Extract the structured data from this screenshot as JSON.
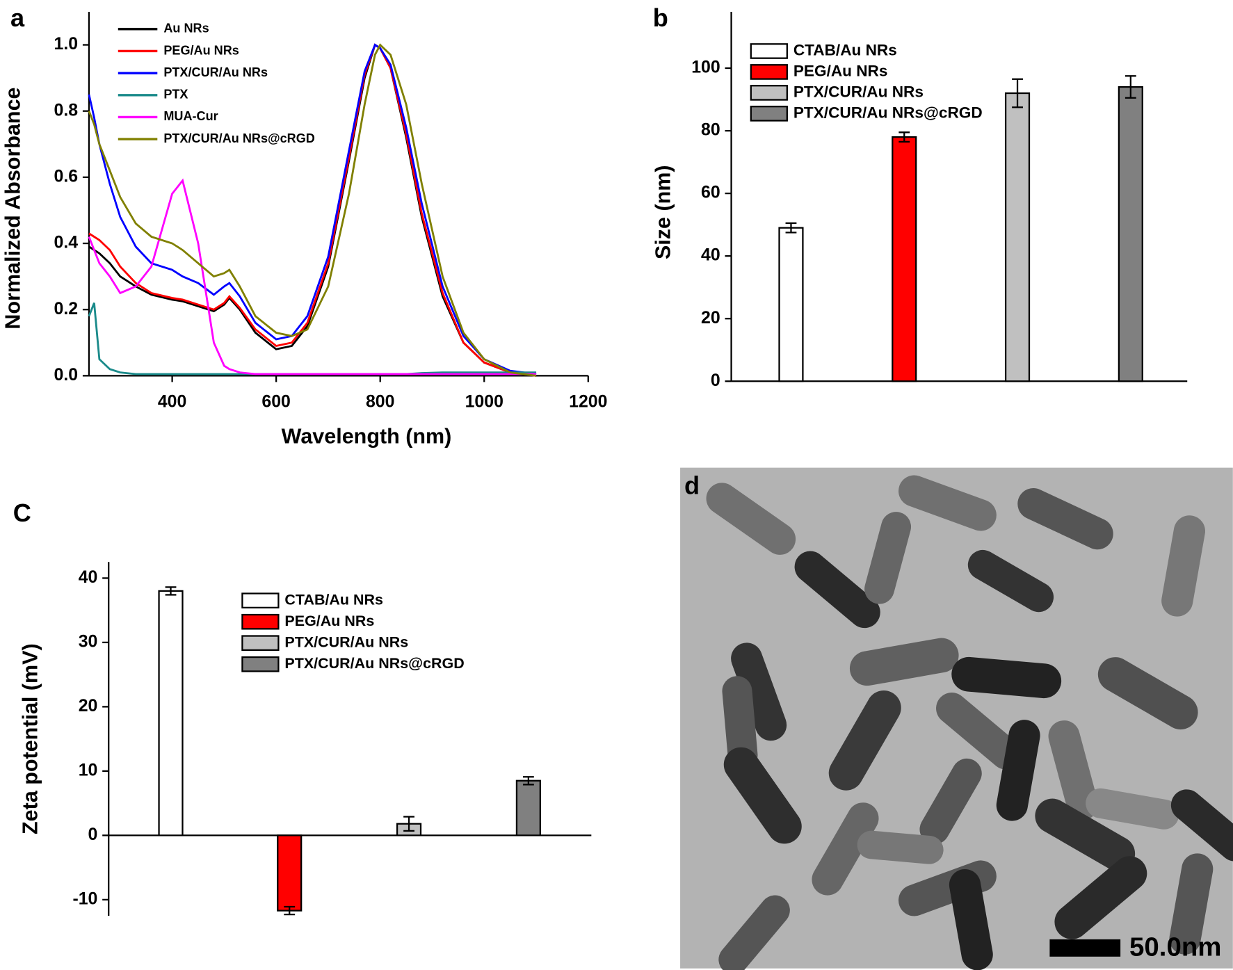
{
  "chart_data": [
    {
      "type": "line",
      "panel": "a",
      "xlabel": "Wavelength (nm)",
      "ylabel": "Normalized Absorbance",
      "xlim": [
        240,
        1200
      ],
      "ylim": [
        0,
        1.1
      ],
      "xticks": [
        400,
        600,
        800,
        1000,
        1200
      ],
      "yticks": [
        {
          "value": 0,
          "label": "0.0"
        },
        0.2,
        0.4,
        0.6,
        0.8,
        {
          "value": 1,
          "label": "1.0"
        }
      ],
      "legend": "upper left",
      "x": [
        240,
        250,
        260,
        280,
        300,
        330,
        360,
        400,
        420,
        450,
        480,
        500,
        510,
        530,
        560,
        600,
        630,
        660,
        700,
        740,
        770,
        790,
        800,
        820,
        850,
        880,
        920,
        960,
        1000,
        1050,
        1100
      ],
      "series": [
        {
          "name": "Au NRs",
          "color": "#000000",
          "values": [
            0.39,
            0.38,
            0.37,
            0.34,
            0.3,
            0.27,
            0.245,
            0.23,
            0.225,
            0.21,
            0.195,
            0.215,
            0.235,
            0.2,
            0.13,
            0.08,
            0.09,
            0.15,
            0.33,
            0.65,
            0.9,
            1.0,
            0.99,
            0.93,
            0.72,
            0.48,
            0.24,
            0.1,
            0.04,
            0.01,
            0.0
          ]
        },
        {
          "name": "PEG/Au NRs",
          "color": "#ff0000",
          "values": [
            0.43,
            0.42,
            0.41,
            0.38,
            0.33,
            0.28,
            0.25,
            0.235,
            0.23,
            0.215,
            0.2,
            0.22,
            0.24,
            0.205,
            0.14,
            0.09,
            0.1,
            0.16,
            0.34,
            0.66,
            0.91,
            1.0,
            0.99,
            0.93,
            0.73,
            0.49,
            0.25,
            0.1,
            0.04,
            0.01,
            0.0
          ]
        },
        {
          "name": "PTX/CUR/Au NRs",
          "color": "#0000ff",
          "values": [
            0.85,
            0.78,
            0.7,
            0.58,
            0.48,
            0.39,
            0.34,
            0.32,
            0.3,
            0.28,
            0.245,
            0.27,
            0.28,
            0.24,
            0.16,
            0.11,
            0.12,
            0.18,
            0.36,
            0.68,
            0.92,
            1.0,
            0.99,
            0.94,
            0.75,
            0.52,
            0.27,
            0.12,
            0.05,
            0.015,
            0.005
          ]
        },
        {
          "name": "PTX",
          "color": "#1a8a8a",
          "values": [
            0.18,
            0.22,
            0.05,
            0.02,
            0.01,
            0.005,
            0.005,
            0.005,
            0.005,
            0.005,
            0.005,
            0.005,
            0.005,
            0.005,
            0.005,
            0.005,
            0.005,
            0.005,
            0.005,
            0.005,
            0.005,
            0.005,
            0.005,
            0.005,
            0.005,
            0.008,
            0.01,
            0.01,
            0.01,
            0.01,
            0.01
          ]
        },
        {
          "name": "MUA-Cur",
          "color": "#ff00ff",
          "values": [
            0.42,
            0.38,
            0.34,
            0.3,
            0.25,
            0.27,
            0.33,
            0.55,
            0.59,
            0.4,
            0.1,
            0.03,
            0.02,
            0.01,
            0.005,
            0.005,
            0.005,
            0.005,
            0.005,
            0.005,
            0.005,
            0.005,
            0.005,
            0.005,
            0.005,
            0.005,
            0.005,
            0.005,
            0.005,
            0.005,
            0.005
          ]
        },
        {
          "name": "PTX/CUR/Au NRs@cRGD",
          "color": "#808000",
          "values": [
            0.8,
            0.76,
            0.7,
            0.62,
            0.54,
            0.46,
            0.42,
            0.4,
            0.38,
            0.34,
            0.3,
            0.31,
            0.32,
            0.27,
            0.18,
            0.13,
            0.12,
            0.14,
            0.27,
            0.55,
            0.82,
            0.97,
            1.0,
            0.97,
            0.82,
            0.58,
            0.3,
            0.13,
            0.05,
            0.01,
            0.0
          ]
        }
      ]
    },
    {
      "type": "bar",
      "panel": "b",
      "ylabel": "Size (nm)",
      "ylim": [
        0,
        118
      ],
      "yticks": [
        0,
        20,
        40,
        60,
        80,
        100
      ],
      "legend": "upper left",
      "categories": [
        "CTAB/Au NRs",
        "PEG/Au NRs",
        "PTX/CUR/Au NRs",
        "PTX/CUR/Au NRs@cRGD"
      ],
      "colors": [
        "#ffffff",
        "#ff0000",
        "#c0c0c0",
        "#808080"
      ],
      "values": [
        49,
        78,
        92,
        94
      ],
      "errors": [
        1.5,
        1.5,
        4.5,
        3.5
      ]
    },
    {
      "type": "bar",
      "panel": "C",
      "ylabel": "Zeta potential (mV)",
      "ylim": [
        -12.5,
        42.5
      ],
      "yticks": [
        -10,
        0,
        10,
        20,
        30,
        40
      ],
      "legend": "upper center",
      "categories": [
        "CTAB/Au NRs",
        "PEG/Au NRs",
        "PTX/CUR/Au NRs",
        "PTX/CUR/Au NRs@cRGD"
      ],
      "colors": [
        "#ffffff",
        "#ff0000",
        "#c0c0c0",
        "#808080"
      ],
      "values": [
        38,
        -11.7,
        1.8,
        8.5
      ],
      "errors": [
        0.6,
        0.6,
        1.1,
        0.6
      ]
    },
    {
      "type": "image",
      "panel": "d",
      "scale_bar": "50.0nm"
    }
  ]
}
